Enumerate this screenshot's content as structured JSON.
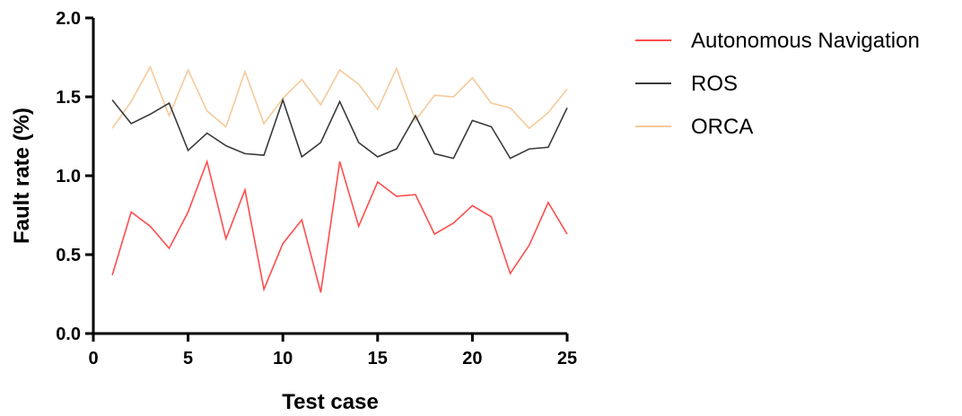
{
  "chart_data": {
    "type": "line",
    "xlabel": "Test case",
    "ylabel": "Fault rate (%)",
    "xlim": [
      0,
      25
    ],
    "ylim": [
      0.0,
      2.0
    ],
    "x_ticks": [
      "0",
      "5",
      "10",
      "15",
      "20",
      "25"
    ],
    "y_ticks": [
      "0.0",
      "0.5",
      "1.0",
      "1.5",
      "2.0"
    ],
    "x": [
      1,
      2,
      3,
      4,
      5,
      6,
      7,
      8,
      9,
      10,
      11,
      12,
      13,
      14,
      15,
      16,
      17,
      18,
      19,
      20,
      21,
      22,
      23,
      24,
      25
    ],
    "grid": false,
    "legend_position": "right",
    "series": [
      {
        "name": "Autonomous Navigation",
        "color": "#ff4d4d",
        "values": [
          0.37,
          0.77,
          0.68,
          0.54,
          0.77,
          1.09,
          0.6,
          0.91,
          0.28,
          0.57,
          0.72,
          0.26,
          1.09,
          0.68,
          0.96,
          0.87,
          0.88,
          0.63,
          0.7,
          0.81,
          0.74,
          0.38,
          0.56,
          0.83,
          0.63
        ]
      },
      {
        "name": "ROS",
        "color": "#3a3a3a",
        "values": [
          1.48,
          1.33,
          1.39,
          1.46,
          1.16,
          1.27,
          1.19,
          1.14,
          1.13,
          1.48,
          1.12,
          1.21,
          1.47,
          1.21,
          1.12,
          1.17,
          1.38,
          1.14,
          1.11,
          1.35,
          1.31,
          1.11,
          1.17,
          1.18,
          1.43
        ]
      },
      {
        "name": "ORCA",
        "color": "#f6c999",
        "values": [
          1.3,
          1.47,
          1.69,
          1.38,
          1.67,
          1.41,
          1.31,
          1.66,
          1.33,
          1.49,
          1.61,
          1.45,
          1.67,
          1.58,
          1.42,
          1.68,
          1.35,
          1.51,
          1.5,
          1.62,
          1.46,
          1.43,
          1.3,
          1.4,
          1.55
        ]
      }
    ]
  }
}
